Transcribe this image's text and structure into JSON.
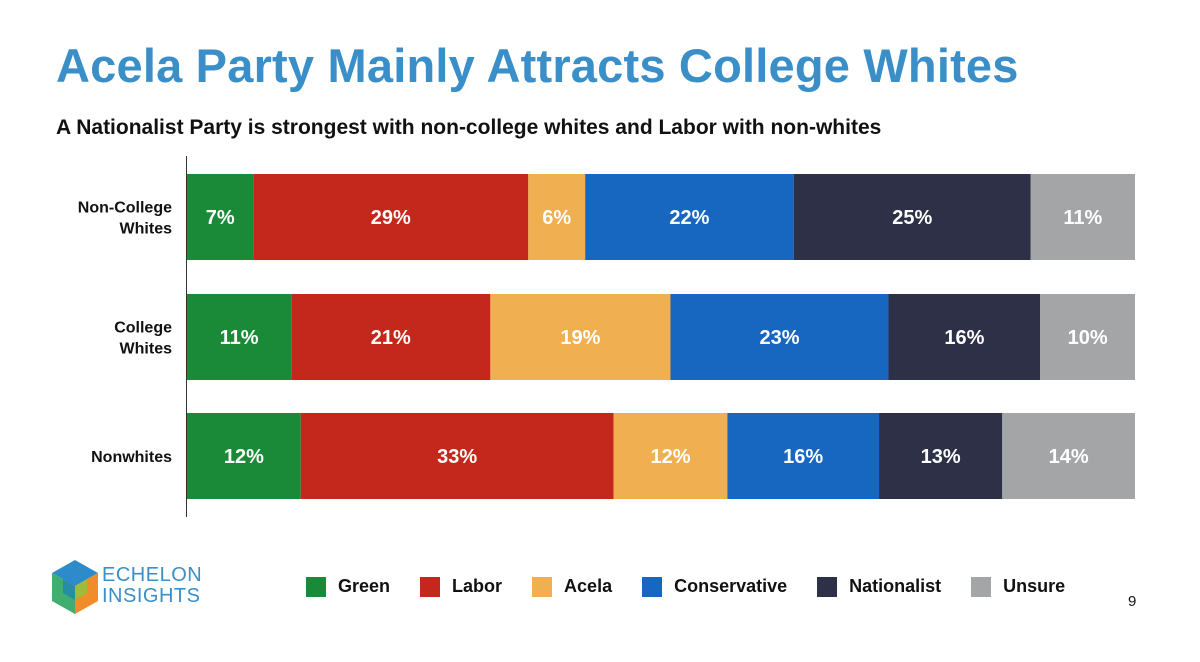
{
  "title": "Acela Party Mainly Attracts College Whites",
  "subtitle": "A Nationalist Party is strongest with non-college whites and Labor with non-whites",
  "chart_data": {
    "type": "bar",
    "orientation": "horizontal",
    "stacked": true,
    "unit": "%",
    "categories": [
      [
        "Non-College",
        "Whites"
      ],
      [
        "College",
        "Whites"
      ],
      [
        "Nonwhites"
      ]
    ],
    "series": [
      {
        "name": "Green",
        "color": "#1b8a38",
        "values": [
          7,
          11,
          12
        ],
        "labels": [
          "7%",
          "11%",
          "12%"
        ]
      },
      {
        "name": "Labor",
        "color": "#c4271b",
        "values": [
          29,
          21,
          33
        ],
        "labels": [
          "29%",
          "21%",
          "33%"
        ]
      },
      {
        "name": "Acela",
        "color": "#f0b052",
        "values": [
          6,
          19,
          12
        ],
        "labels": [
          "6%",
          "19%",
          "12%"
        ]
      },
      {
        "name": "Conservative",
        "color": "#1767c1",
        "values": [
          22,
          23,
          16
        ],
        "labels": [
          "22%",
          "23%",
          "16%"
        ]
      },
      {
        "name": "Nationalist",
        "color": "#2e3047",
        "values": [
          25,
          16,
          13
        ],
        "labels": [
          "25%",
          "16%",
          "13%"
        ]
      },
      {
        "name": "Unsure",
        "color": "#a3a5a7",
        "values": [
          11,
          10,
          14
        ],
        "labels": [
          "11%",
          "10%",
          "14%"
        ]
      }
    ],
    "legend_position": "bottom"
  },
  "logo": {
    "line1": "ECHELON",
    "line2": "INSIGHTS"
  },
  "page_number": "9"
}
